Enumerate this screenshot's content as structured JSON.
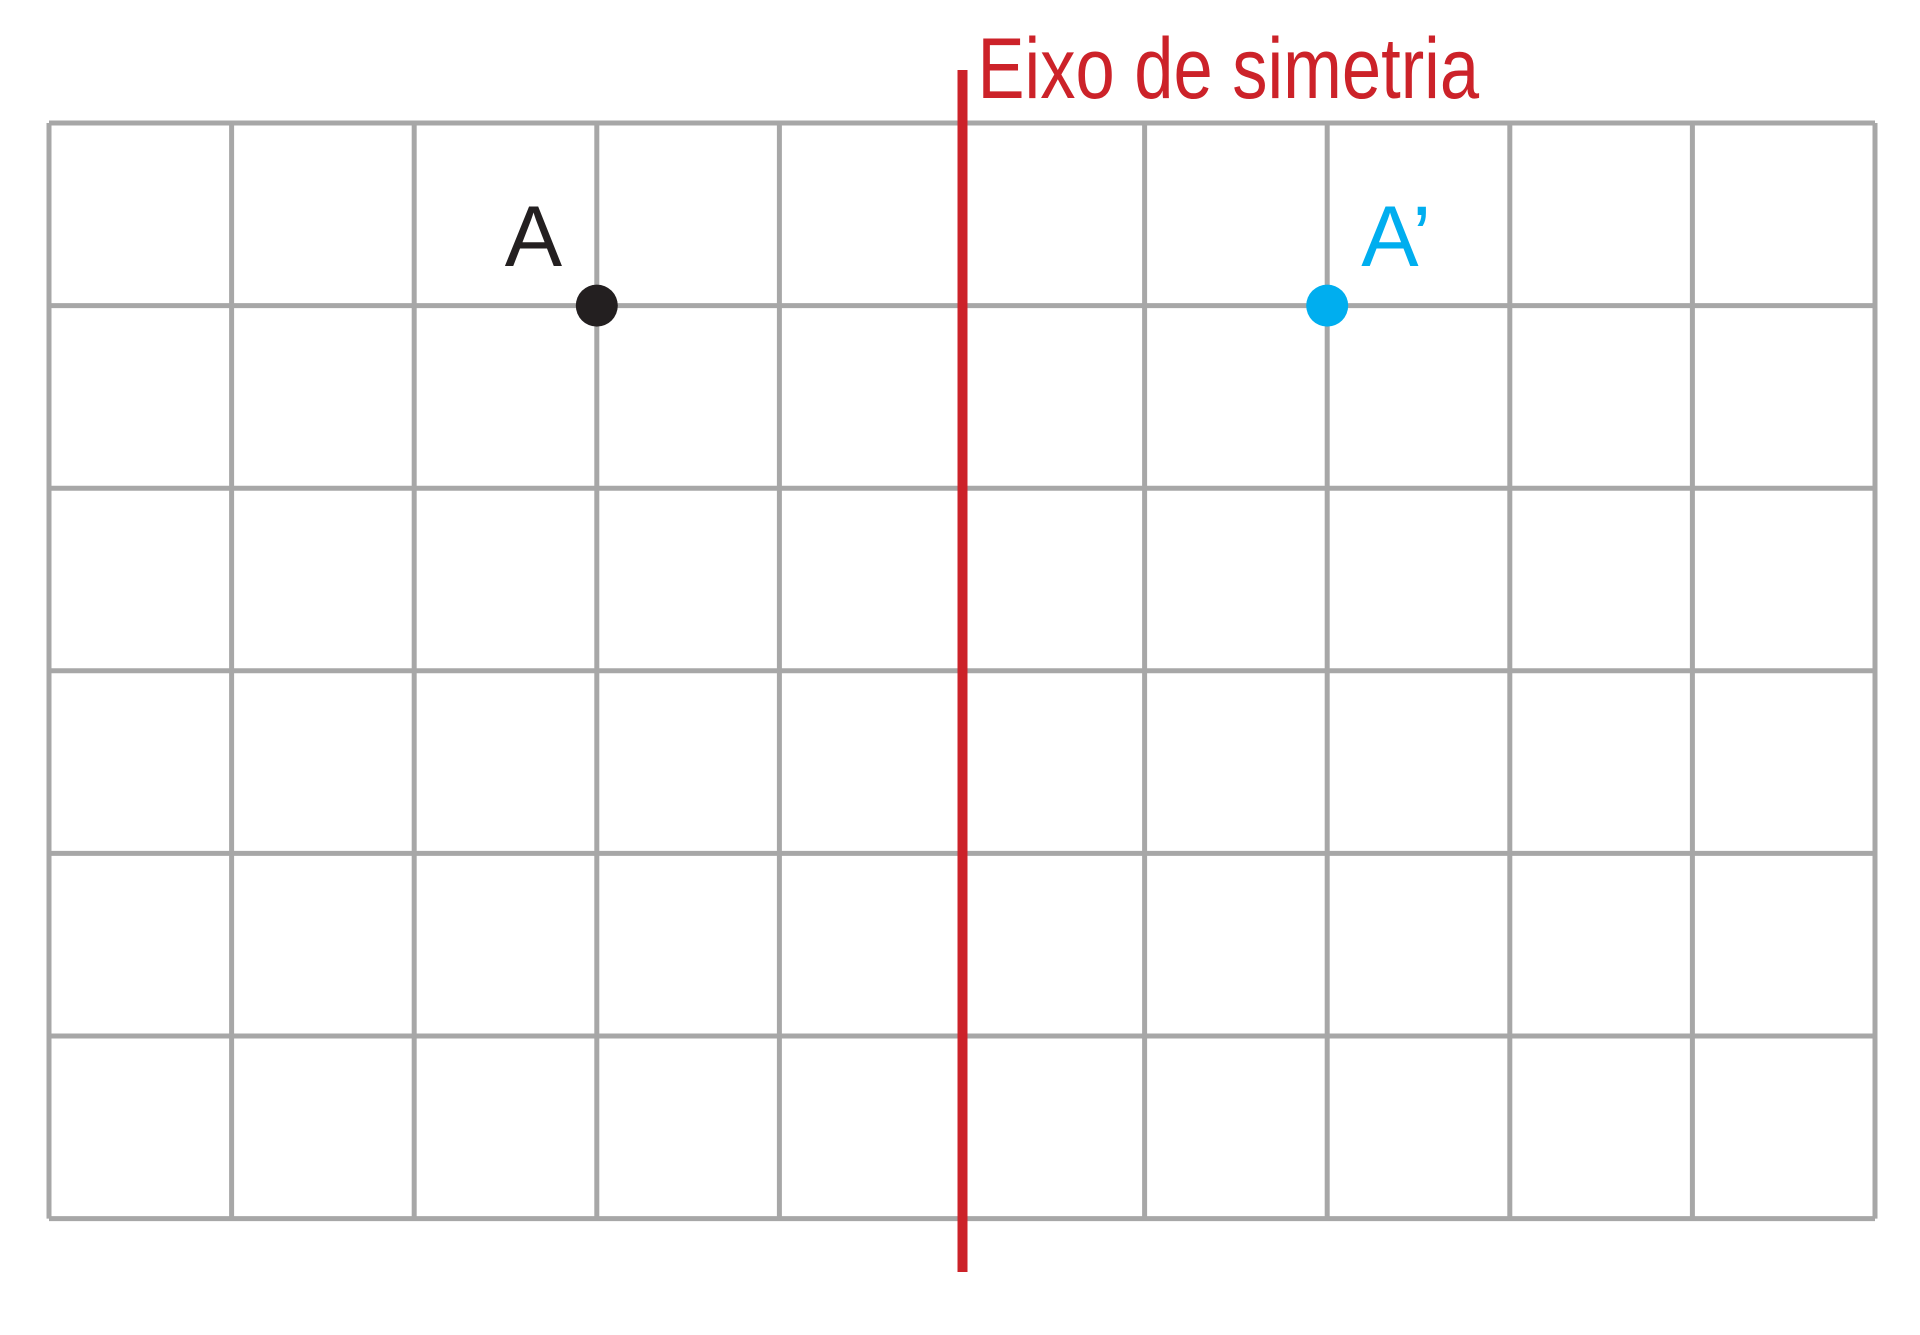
{
  "grid": {
    "columns": 10,
    "rows": 6,
    "line_color": "#a7a7a7"
  },
  "axis": {
    "label": "Eixo de simetria",
    "color": "#cc2229",
    "column_position": 5
  },
  "points": [
    {
      "id": "A",
      "label": "A",
      "column": 3,
      "row": 1,
      "color": "#231f20"
    },
    {
      "id": "A-prime",
      "label": "A’",
      "column": 7,
      "row": 1,
      "color": "#00aeef"
    }
  ]
}
